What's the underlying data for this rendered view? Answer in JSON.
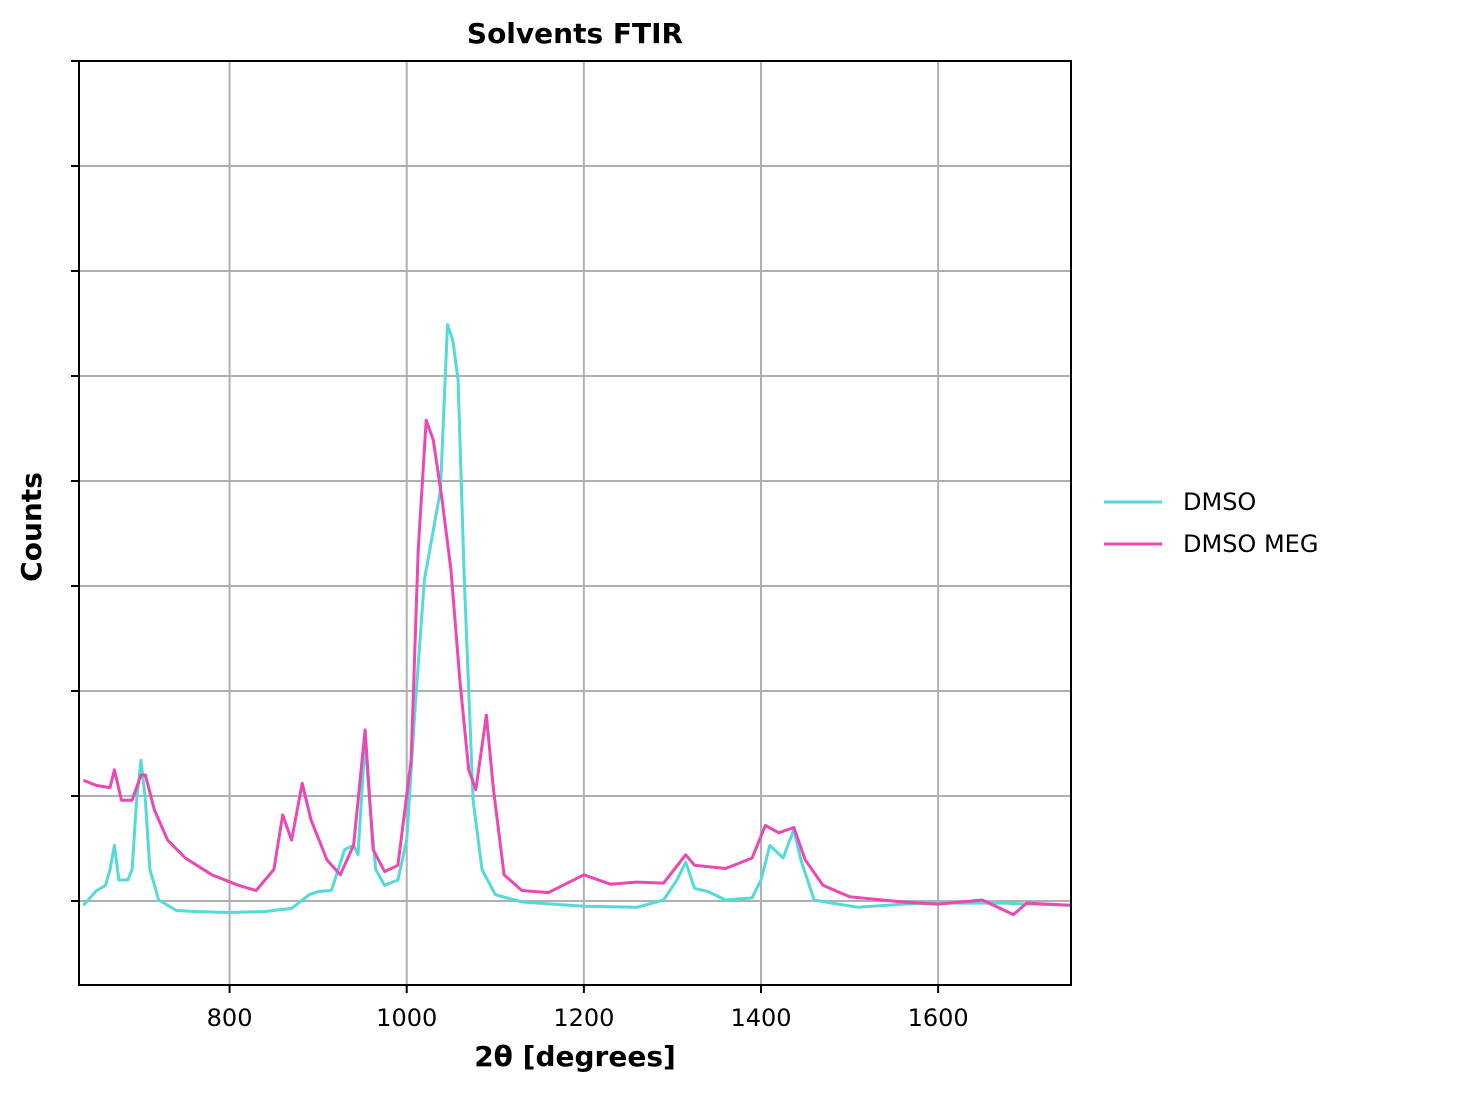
{
  "chart_data": {
    "type": "line",
    "title": "Solvents FTIR",
    "x_label": "2θ [degrees]",
    "y_label": "Counts",
    "xlim": [
      630,
      1750
    ],
    "xticks": [
      800,
      1000,
      1200,
      1400,
      1600
    ],
    "ylim": [
      -0.8,
      8
    ],
    "yticks": [
      0,
      1,
      2,
      3,
      4,
      5,
      6,
      7,
      8
    ],
    "grid": true,
    "legend": "outside right",
    "series": [
      {
        "name": "DMSO",
        "color": "#55d9d9",
        "x": [
          635,
          650,
          660,
          665,
          670,
          675,
          685,
          690,
          695,
          700,
          705,
          710,
          720,
          740,
          760,
          800,
          840,
          870,
          890,
          900,
          915,
          930,
          940,
          945,
          953,
          958,
          965,
          975,
          990,
          1000,
          1010,
          1020,
          1030,
          1038,
          1046,
          1052,
          1058,
          1065,
          1075,
          1085,
          1100,
          1130,
          1200,
          1260,
          1290,
          1305,
          1315,
          1325,
          1340,
          1360,
          1390,
          1400,
          1410,
          1425,
          1437,
          1445,
          1460,
          1480,
          1510,
          1560,
          1600,
          1670,
          1750
        ],
        "values": [
          -0.04,
          0.1,
          0.15,
          0.3,
          0.53,
          0.2,
          0.2,
          0.3,
          0.96,
          1.34,
          0.96,
          0.3,
          0.01,
          -0.09,
          -0.1,
          -0.11,
          -0.1,
          -0.07,
          0.06,
          0.09,
          0.1,
          0.49,
          0.53,
          0.44,
          1.53,
          0.96,
          0.3,
          0.15,
          0.2,
          0.58,
          1.91,
          3.06,
          3.53,
          3.91,
          5.49,
          5.34,
          4.96,
          3.06,
          0.96,
          0.3,
          0.06,
          -0.01,
          -0.05,
          -0.06,
          0.01,
          0.2,
          0.37,
          0.12,
          0.09,
          0.01,
          0.03,
          0.2,
          0.53,
          0.41,
          0.68,
          0.39,
          0.01,
          -0.02,
          -0.06,
          -0.03,
          -0.02,
          -0.02,
          -0.04
        ]
      },
      {
        "name": "DMSO MEG",
        "color": "#ec47b5",
        "x": [
          635,
          650,
          665,
          670,
          678,
          690,
          700,
          705,
          715,
          730,
          750,
          780,
          810,
          830,
          850,
          860,
          870,
          882,
          892,
          910,
          925,
          940,
          953,
          962,
          975,
          990,
          1005,
          1013,
          1022,
          1030,
          1040,
          1050,
          1060,
          1070,
          1078,
          1090,
          1098,
          1110,
          1130,
          1160,
          1200,
          1230,
          1260,
          1290,
          1315,
          1325,
          1360,
          1390,
          1405,
          1420,
          1437,
          1450,
          1470,
          1500,
          1560,
          1600,
          1650,
          1685,
          1700,
          1750
        ],
        "values": [
          1.15,
          1.1,
          1.08,
          1.25,
          0.96,
          0.96,
          1.2,
          1.2,
          0.87,
          0.58,
          0.41,
          0.25,
          0.15,
          0.1,
          0.3,
          0.82,
          0.58,
          1.12,
          0.77,
          0.39,
          0.25,
          0.53,
          1.63,
          0.49,
          0.28,
          0.34,
          1.34,
          3.34,
          4.58,
          4.39,
          3.82,
          3.15,
          2.1,
          1.25,
          1.06,
          1.77,
          1.06,
          0.25,
          0.1,
          0.08,
          0.25,
          0.16,
          0.18,
          0.17,
          0.44,
          0.34,
          0.31,
          0.41,
          0.72,
          0.65,
          0.7,
          0.39,
          0.15,
          0.04,
          -0.01,
          -0.03,
          0.01,
          -0.13,
          -0.02,
          -0.04
        ]
      }
    ]
  }
}
